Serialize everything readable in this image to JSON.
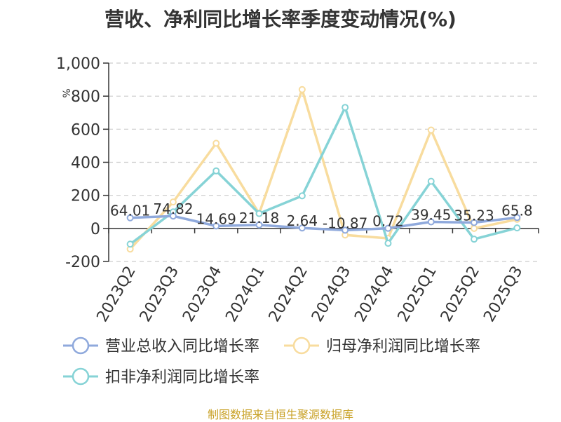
{
  "title": "营收、净利同比增长率季度变动情况(%)",
  "source": "制图数据来自恒生聚源数据库",
  "chart_data": {
    "type": "line",
    "title": "营收、净利同比增长率季度变动情况(%)",
    "ylabel": "%",
    "xlabel": "",
    "ylim": [
      -200,
      1000
    ],
    "yticks": [
      -200,
      0,
      200,
      400,
      600,
      800,
      1000
    ],
    "ytick_labels": [
      "-200",
      "0",
      "200",
      "400",
      "600",
      "800",
      "1,000"
    ],
    "grid": true,
    "legend_position": "bottom",
    "categories": [
      "2023Q2",
      "2023Q3",
      "2023Q4",
      "2024Q1",
      "2024Q2",
      "2024Q3",
      "2024Q4",
      "2025Q1",
      "2025Q2",
      "2025Q3"
    ],
    "series": [
      {
        "name": "营业总收入同比增长率",
        "color": "#8fa9dc",
        "values": [
          64.01,
          74.82,
          14.69,
          21.18,
          2.64,
          -10.87,
          0.72,
          39.45,
          35.23,
          65.8
        ],
        "labels": [
          "64.01",
          "74.82",
          "14.69",
          "21.18",
          "2.64",
          "-10.87",
          "0.72",
          "39.45",
          "35.23",
          "65.8"
        ]
      },
      {
        "name": "归母净利润同比增长率",
        "color": "#f8dc9e",
        "values": [
          -125,
          160,
          515,
          90,
          840,
          -40,
          -60,
          595,
          0,
          55
        ]
      },
      {
        "name": "扣非净利润同比增长率",
        "color": "#86d3d6",
        "values": [
          -95,
          100,
          348,
          90,
          197,
          732,
          -90,
          285,
          -65,
          3
        ]
      }
    ]
  }
}
